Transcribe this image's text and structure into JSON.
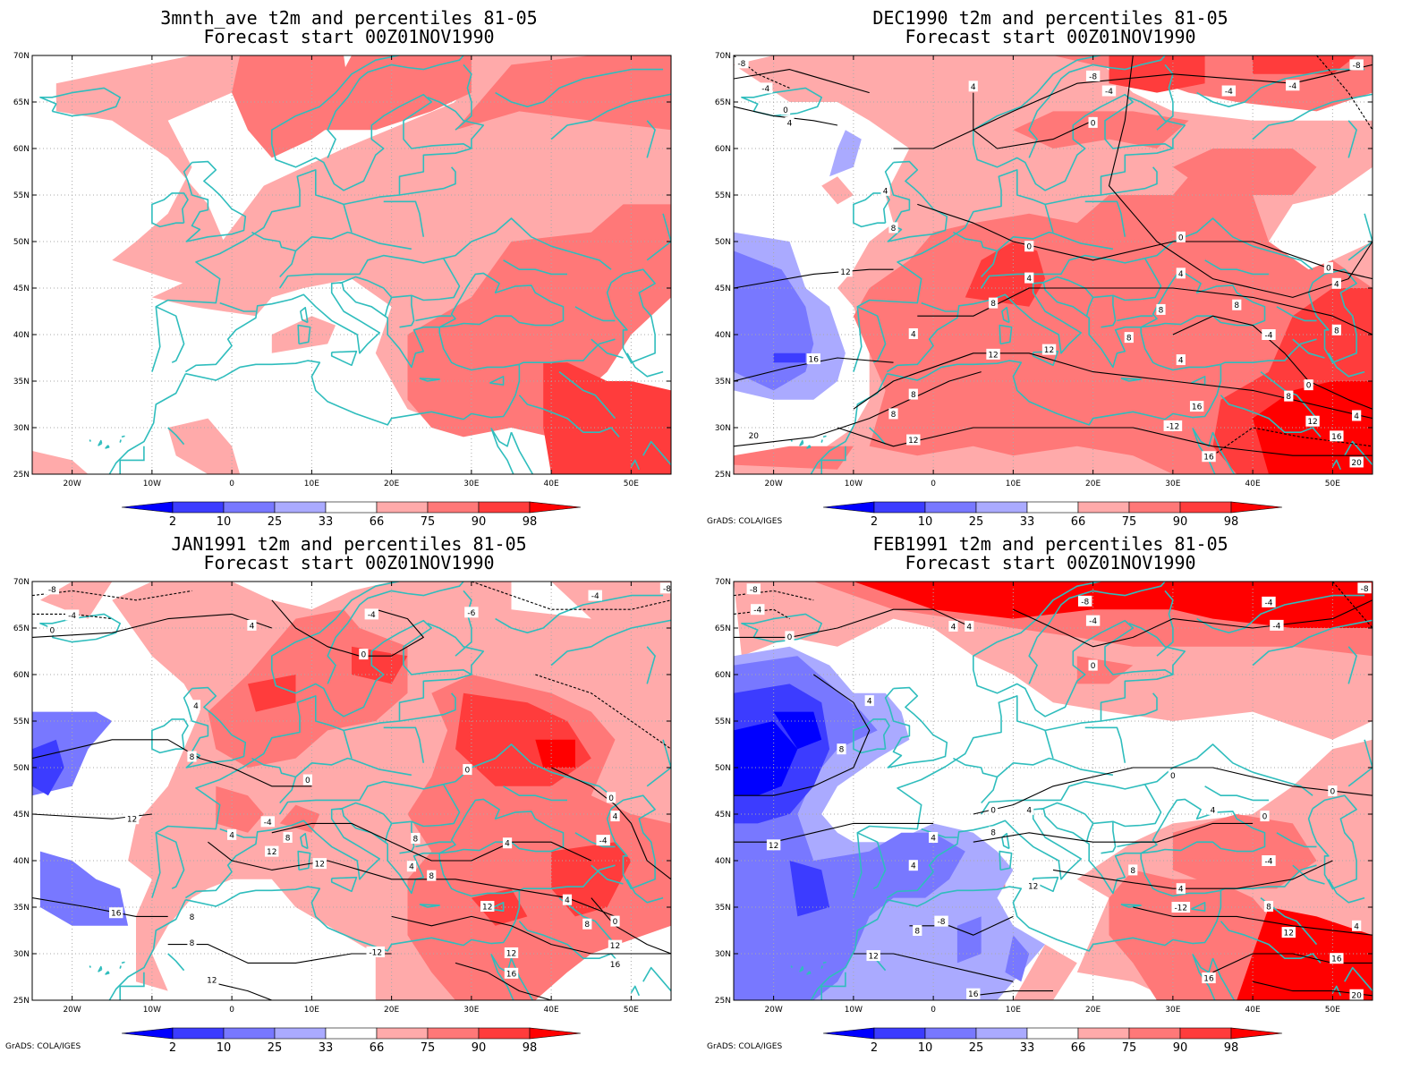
{
  "credit": "GrADS: COLA/IGES",
  "lon_labels": [
    "20W",
    "10W",
    "0",
    "10E",
    "20E",
    "30E",
    "40E",
    "50E"
  ],
  "lat_labels": [
    "70N",
    "65N",
    "60N",
    "55N",
    "50N",
    "45N",
    "40N",
    "35N",
    "30N",
    "25N"
  ],
  "colorbar": {
    "labels": [
      "2",
      "10",
      "25",
      "33",
      "66",
      "75",
      "90",
      "98"
    ],
    "colors": [
      "#0000ff",
      "#3c3cff",
      "#7878ff",
      "#aaaaff",
      "#ffffff",
      "#ffaaaa",
      "#ff7878",
      "#ff3c3c",
      "#ff0000"
    ]
  },
  "colors": {
    "coast": "#2fbdbd",
    "grid": "#aaaaaa",
    "contour": "#000000"
  },
  "panels": [
    {
      "title_line1": "3mnth_ave t2m and percentiles 81-05",
      "title_line2": "Forecast start 00Z01NOV1990",
      "show_credit": false,
      "contour_labels": []
    },
    {
      "title_line1": "DEC1990 t2m and percentiles 81-05",
      "title_line2": "Forecast start 00Z01NOV1990",
      "show_credit": true,
      "contour_labels": [
        {
          "text": "-8",
          "lon": -24,
          "lat": 69.2
        },
        {
          "text": "-4",
          "lon": -21,
          "lat": 66.5
        },
        {
          "text": "0",
          "lon": -18.5,
          "lat": 64.2
        },
        {
          "text": "4",
          "lon": -18,
          "lat": 62.8
        },
        {
          "text": "4",
          "lon": -6,
          "lat": 55.5
        },
        {
          "text": "8",
          "lon": -5,
          "lat": 51.5
        },
        {
          "text": "4",
          "lon": 5,
          "lat": 66.7
        },
        {
          "text": "-8",
          "lon": 20,
          "lat": 67.8
        },
        {
          "text": "-4",
          "lon": 22,
          "lat": 66.2
        },
        {
          "text": "0",
          "lon": 20,
          "lat": 62.8
        },
        {
          "text": "-4",
          "lon": 37,
          "lat": 66.2
        },
        {
          "text": "-4",
          "lon": 45,
          "lat": 66.8
        },
        {
          "text": "-8",
          "lon": 53,
          "lat": 69
        },
        {
          "text": "12",
          "lon": -11,
          "lat": 46.8
        },
        {
          "text": "16",
          "lon": -15,
          "lat": 37.4
        },
        {
          "text": "20",
          "lon": -22.5,
          "lat": 29.2
        },
        {
          "text": "4",
          "lon": -2.5,
          "lat": 40.1
        },
        {
          "text": "8",
          "lon": 7.5,
          "lat": 43.4
        },
        {
          "text": "12",
          "lon": 7.5,
          "lat": 37.9
        },
        {
          "text": "8",
          "lon": -2.5,
          "lat": 33.6
        },
        {
          "text": "8",
          "lon": -5,
          "lat": 31.5
        },
        {
          "text": "12",
          "lon": -2.5,
          "lat": 28.7
        },
        {
          "text": "0",
          "lon": 12,
          "lat": 49.5
        },
        {
          "text": "4",
          "lon": 12,
          "lat": 46.1
        },
        {
          "text": "12",
          "lon": 14.5,
          "lat": 38.4
        },
        {
          "text": "0",
          "lon": 31,
          "lat": 50.5
        },
        {
          "text": "4",
          "lon": 31,
          "lat": 46.6
        },
        {
          "text": "8",
          "lon": 28.5,
          "lat": 42.7
        },
        {
          "text": "8",
          "lon": 38,
          "lat": 43.2
        },
        {
          "text": "8",
          "lon": 24.5,
          "lat": 39.7
        },
        {
          "text": "4",
          "lon": 31,
          "lat": 37.3
        },
        {
          "text": "16",
          "lon": 33,
          "lat": 32.3
        },
        {
          "text": "-12",
          "lon": 30,
          "lat": 30.2
        },
        {
          "text": "16",
          "lon": 34.5,
          "lat": 26.9
        },
        {
          "text": "0",
          "lon": 49.5,
          "lat": 47.2
        },
        {
          "text": "4",
          "lon": 50.5,
          "lat": 45.5
        },
        {
          "text": "8",
          "lon": 50.5,
          "lat": 40.5
        },
        {
          "text": "-4",
          "lon": 42,
          "lat": 40
        },
        {
          "text": "0",
          "lon": 47,
          "lat": 34.6
        },
        {
          "text": "8",
          "lon": 44.5,
          "lat": 33.4
        },
        {
          "text": "4",
          "lon": 53,
          "lat": 31.3
        },
        {
          "text": "12",
          "lon": 47.5,
          "lat": 30.7
        },
        {
          "text": "16",
          "lon": 50.5,
          "lat": 29.1
        },
        {
          "text": "20",
          "lon": 53,
          "lat": 26.3
        }
      ]
    },
    {
      "title_line1": "JAN1991 t2m and percentiles 81-05",
      "title_line2": "Forecast start 00Z01NOV1990",
      "show_credit": true,
      "contour_labels": [
        {
          "text": "-8",
          "lon": -22.5,
          "lat": 69.2
        },
        {
          "text": "-4",
          "lon": -20,
          "lat": 66.4
        },
        {
          "text": "0",
          "lon": -22.5,
          "lat": 64.8
        },
        {
          "text": "4",
          "lon": 2.5,
          "lat": 65.3
        },
        {
          "text": "4",
          "lon": -4.5,
          "lat": 56.7
        },
        {
          "text": "8",
          "lon": -5,
          "lat": 51.2
        },
        {
          "text": "-4",
          "lon": 17.5,
          "lat": 66.5
        },
        {
          "text": "0",
          "lon": 16.5,
          "lat": 62.2
        },
        {
          "text": "-6",
          "lon": 30,
          "lat": 66.7
        },
        {
          "text": "-4",
          "lon": 45.5,
          "lat": 68.5
        },
        {
          "text": "-8",
          "lon": 54.5,
          "lat": 69.3
        },
        {
          "text": "12",
          "lon": -12.5,
          "lat": 44.5
        },
        {
          "text": "16",
          "lon": -14.5,
          "lat": 34.4
        },
        {
          "text": "-12",
          "lon": 18,
          "lat": 30.2
        },
        {
          "text": "12",
          "lon": -2.5,
          "lat": 27.2
        },
        {
          "text": "8",
          "lon": -5,
          "lat": 34
        },
        {
          "text": "8",
          "lon": -5,
          "lat": 31.2
        },
        {
          "text": "4",
          "lon": 0,
          "lat": 42.8
        },
        {
          "text": "-4",
          "lon": 4.5,
          "lat": 44.2
        },
        {
          "text": "8",
          "lon": 7,
          "lat": 42.5
        },
        {
          "text": "12",
          "lon": 5,
          "lat": 41
        },
        {
          "text": "12",
          "lon": 11,
          "lat": 39.7
        },
        {
          "text": "0",
          "lon": 9.5,
          "lat": 48.7
        },
        {
          "text": "8",
          "lon": 23,
          "lat": 42.4
        },
        {
          "text": "4",
          "lon": 22.5,
          "lat": 39.4
        },
        {
          "text": "8",
          "lon": 25,
          "lat": 38.4
        },
        {
          "text": "0",
          "lon": 29.5,
          "lat": 49.8
        },
        {
          "text": "4",
          "lon": 34.5,
          "lat": 41.9
        },
        {
          "text": "12",
          "lon": 32,
          "lat": 35.1
        },
        {
          "text": "12",
          "lon": 35,
          "lat": 30.1
        },
        {
          "text": "16",
          "lon": 35,
          "lat": 27.9
        },
        {
          "text": "0",
          "lon": 47.5,
          "lat": 46.8
        },
        {
          "text": "4",
          "lon": 48,
          "lat": 44.8
        },
        {
          "text": "-4",
          "lon": 46.5,
          "lat": 42.2
        },
        {
          "text": "4",
          "lon": 42,
          "lat": 35.8
        },
        {
          "text": "8",
          "lon": 44.5,
          "lat": 33.2
        },
        {
          "text": "0",
          "lon": 48,
          "lat": 33.5
        },
        {
          "text": "12",
          "lon": 48,
          "lat": 30.9
        },
        {
          "text": "16",
          "lon": 48,
          "lat": 28.9
        }
      ]
    },
    {
      "title_line1": "FEB1991 t2m and percentiles 81-05",
      "title_line2": "Forecast start 00Z01NOV1990",
      "show_credit": true,
      "contour_labels": [
        {
          "text": "-8",
          "lon": -22.5,
          "lat": 69.2
        },
        {
          "text": "-4",
          "lon": -22,
          "lat": 67
        },
        {
          "text": "0",
          "lon": -18,
          "lat": 64.1
        },
        {
          "text": "4",
          "lon": 2.5,
          "lat": 65.2
        },
        {
          "text": "4",
          "lon": 4.5,
          "lat": 65.2
        },
        {
          "text": "4",
          "lon": -8,
          "lat": 57.2
        },
        {
          "text": "8",
          "lon": -11.5,
          "lat": 52
        },
        {
          "text": "-8",
          "lon": 19,
          "lat": 67.9
        },
        {
          "text": "-4",
          "lon": 20,
          "lat": 65.8
        },
        {
          "text": "0",
          "lon": 20,
          "lat": 61
        },
        {
          "text": "-4",
          "lon": 42,
          "lat": 67.8
        },
        {
          "text": "-4",
          "lon": 43,
          "lat": 65.3
        },
        {
          "text": "-8",
          "lon": 54,
          "lat": 69.3
        },
        {
          "text": "12",
          "lon": -20,
          "lat": 41.7
        },
        {
          "text": "4",
          "lon": 0,
          "lat": 42.5
        },
        {
          "text": "4",
          "lon": -2.5,
          "lat": 39.5
        },
        {
          "text": "8",
          "lon": 7.5,
          "lat": 43.1
        },
        {
          "text": "0",
          "lon": 7.5,
          "lat": 45.5
        },
        {
          "text": "4",
          "lon": 12,
          "lat": 45.5
        },
        {
          "text": "-8",
          "lon": 1,
          "lat": 33.5
        },
        {
          "text": "8",
          "lon": -2,
          "lat": 32.5
        },
        {
          "text": "12",
          "lon": -7.5,
          "lat": 29.8
        },
        {
          "text": "12",
          "lon": 12.5,
          "lat": 37.3
        },
        {
          "text": "16",
          "lon": 5,
          "lat": 25.7
        },
        {
          "text": "0",
          "lon": 30,
          "lat": 49.2
        },
        {
          "text": "0",
          "lon": 50,
          "lat": 47.5
        },
        {
          "text": "4",
          "lon": 35,
          "lat": 45.5
        },
        {
          "text": "0",
          "lon": 41.5,
          "lat": 44.8
        },
        {
          "text": "-4",
          "lon": 42,
          "lat": 40
        },
        {
          "text": "8",
          "lon": 25,
          "lat": 39
        },
        {
          "text": "4",
          "lon": 31,
          "lat": 37
        },
        {
          "text": "-12",
          "lon": 31,
          "lat": 35
        },
        {
          "text": "8",
          "lon": 42,
          "lat": 35.1
        },
        {
          "text": "12",
          "lon": 44.5,
          "lat": 32.3
        },
        {
          "text": "4",
          "lon": 53,
          "lat": 33
        },
        {
          "text": "16",
          "lon": 50.5,
          "lat": 29.5
        },
        {
          "text": "16",
          "lon": 34.5,
          "lat": 27.4
        },
        {
          "text": "20",
          "lon": 53,
          "lat": 25.6
        }
      ]
    }
  ]
}
